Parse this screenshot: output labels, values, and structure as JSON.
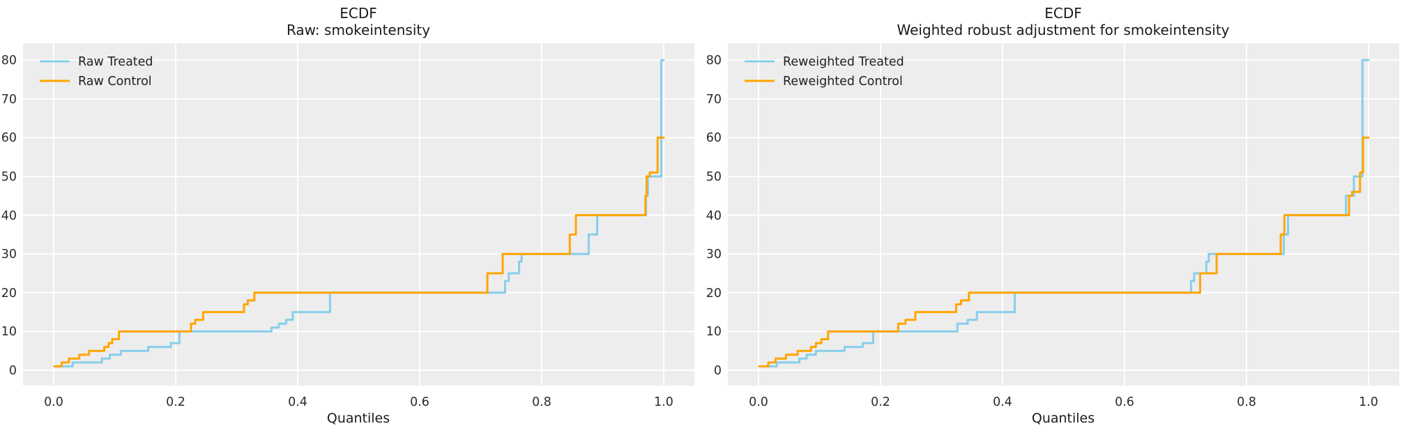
{
  "colors": {
    "treated_line": "#87CEEB",
    "control_line": "#FFA500",
    "panel_background": "#EDEDED",
    "grid": "#FFFFFF",
    "text": "#262626"
  },
  "chart_data": [
    {
      "type": "line",
      "subtype": "step-quantile-ecdf",
      "title_line1": "ECDF",
      "title_line2": "Raw: smokeintensity",
      "xlabel": "Quantiles",
      "x_ticks": [
        "0.0",
        "0.2",
        "0.4",
        "0.6",
        "0.8",
        "1.0"
      ],
      "y_ticks": [
        "0",
        "10",
        "20",
        "30",
        "40",
        "50",
        "60",
        "70",
        "80"
      ],
      "xlim": [
        0,
        1
      ],
      "ylim": [
        0,
        80
      ],
      "grid": true,
      "legend_position": "upper left",
      "series": [
        {
          "name": "Raw Treated",
          "color": "#87CEEB",
          "points": [
            [
              0.012,
              1
            ],
            [
              0.031,
              2
            ],
            [
              0.079,
              3
            ],
            [
              0.092,
              4
            ],
            [
              0.11,
              5
            ],
            [
              0.155,
              6
            ],
            [
              0.192,
              7
            ],
            [
              0.206,
              10
            ],
            [
              0.357,
              11
            ],
            [
              0.369,
              12
            ],
            [
              0.381,
              13
            ],
            [
              0.392,
              15
            ],
            [
              0.453,
              20
            ],
            [
              0.74,
              23
            ],
            [
              0.746,
              25
            ],
            [
              0.763,
              28
            ],
            [
              0.767,
              30
            ],
            [
              0.877,
              35
            ],
            [
              0.891,
              40
            ],
            [
              0.971,
              45
            ],
            [
              0.974,
              50
            ],
            [
              0.996,
              80
            ]
          ],
          "end_q": 1.0
        },
        {
          "name": "Raw Control",
          "color": "#FFA500",
          "points": [
            [
              0.001,
              1
            ],
            [
              0.013,
              2
            ],
            [
              0.025,
              3
            ],
            [
              0.042,
              4
            ],
            [
              0.058,
              5
            ],
            [
              0.083,
              6
            ],
            [
              0.09,
              7
            ],
            [
              0.096,
              8
            ],
            [
              0.107,
              10
            ],
            [
              0.225,
              12
            ],
            [
              0.232,
              13
            ],
            [
              0.245,
              15
            ],
            [
              0.312,
              17
            ],
            [
              0.318,
              18
            ],
            [
              0.329,
              20
            ],
            [
              0.711,
              25
            ],
            [
              0.736,
              30
            ],
            [
              0.846,
              35
            ],
            [
              0.856,
              40
            ],
            [
              0.97,
              45
            ],
            [
              0.972,
              50
            ],
            [
              0.977,
              51
            ],
            [
              0.99,
              60
            ]
          ],
          "end_q": 1.0
        }
      ]
    },
    {
      "type": "line",
      "subtype": "step-quantile-ecdf",
      "title_line1": "ECDF",
      "title_line2": "Weighted robust adjustment for smokeintensity",
      "xlabel": "Quantiles",
      "x_ticks": [
        "0.0",
        "0.2",
        "0.4",
        "0.6",
        "0.8",
        "1.0"
      ],
      "y_ticks": [
        "0",
        "10",
        "20",
        "30",
        "40",
        "50",
        "60",
        "70",
        "80"
      ],
      "xlim": [
        0,
        1
      ],
      "ylim": [
        0,
        80
      ],
      "grid": true,
      "legend_position": "upper left",
      "series": [
        {
          "name": "Reweighted Treated",
          "color": "#87CEEB",
          "points": [
            [
              0.014,
              1
            ],
            [
              0.03,
              2
            ],
            [
              0.067,
              3
            ],
            [
              0.079,
              4
            ],
            [
              0.094,
              5
            ],
            [
              0.141,
              6
            ],
            [
              0.171,
              7
            ],
            [
              0.188,
              10
            ],
            [
              0.326,
              12
            ],
            [
              0.343,
              13
            ],
            [
              0.358,
              15
            ],
            [
              0.42,
              20
            ],
            [
              0.709,
              23
            ],
            [
              0.714,
              25
            ],
            [
              0.734,
              28
            ],
            [
              0.738,
              30
            ],
            [
              0.861,
              35
            ],
            [
              0.868,
              40
            ],
            [
              0.963,
              45
            ],
            [
              0.976,
              50
            ],
            [
              0.99,
              80
            ]
          ],
          "end_q": 1.0
        },
        {
          "name": "Reweighted Control",
          "color": "#FFA500",
          "points": [
            [
              0.001,
              1
            ],
            [
              0.016,
              2
            ],
            [
              0.028,
              3
            ],
            [
              0.045,
              4
            ],
            [
              0.064,
              5
            ],
            [
              0.086,
              6
            ],
            [
              0.094,
              7
            ],
            [
              0.103,
              8
            ],
            [
              0.114,
              10
            ],
            [
              0.229,
              12
            ],
            [
              0.241,
              13
            ],
            [
              0.257,
              15
            ],
            [
              0.324,
              17
            ],
            [
              0.332,
              18
            ],
            [
              0.345,
              20
            ],
            [
              0.724,
              25
            ],
            [
              0.751,
              30
            ],
            [
              0.856,
              35
            ],
            [
              0.862,
              40
            ],
            [
              0.968,
              45
            ],
            [
              0.973,
              46
            ],
            [
              0.986,
              51
            ],
            [
              0.991,
              60
            ]
          ],
          "end_q": 1.0
        }
      ]
    }
  ]
}
